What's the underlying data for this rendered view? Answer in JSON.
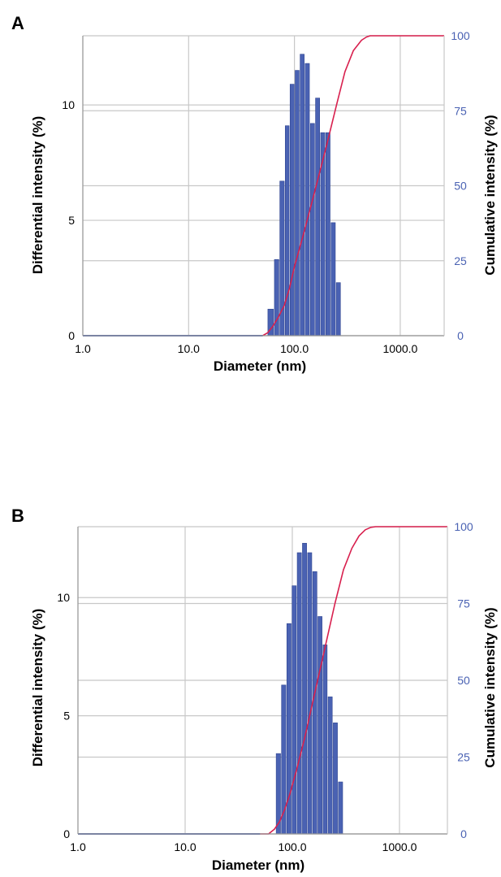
{
  "colors": {
    "bar_fill": "#4a62b3",
    "bar_edge": "#2f4590",
    "curve": "#d8204e",
    "grid": "#c8c8c8",
    "right_axis_text": "#4a62b3",
    "text": "#000000"
  },
  "chart_data": [
    {
      "panel_label": "A",
      "type": "bar",
      "xscale": "log",
      "xlabel": "Diameter (nm)",
      "ylabel": "Differential intensity (%)",
      "y2label": "Cumulative intensity (%)",
      "xlim": [
        1,
        2600
      ],
      "ylim": [
        0,
        13
      ],
      "y2lim": [
        0,
        100
      ],
      "xticks": [
        "1.0",
        "10.0",
        "100.0",
        "1000.0"
      ],
      "yticks": [
        "0",
        "5",
        "10"
      ],
      "y2ticks": [
        "0",
        "25",
        "50",
        "75",
        "100"
      ],
      "grid": true,
      "bars": {
        "x": [
          60,
          68,
          76,
          85,
          95,
          106,
          118,
          132,
          148,
          165,
          185,
          207,
          232,
          260,
          291,
          326,
          365,
          409,
          458
        ],
        "values": [
          1.15,
          3.3,
          6.7,
          9.1,
          10.9,
          11.5,
          12.2,
          11.8,
          9.2,
          10.3,
          8.8,
          8.8,
          4.9,
          2.3,
          0,
          0,
          0,
          0,
          0
        ],
        "edges": [
          55.5,
          64.0,
          72.0,
          81.0,
          90.0,
          100.5,
          112.0,
          125.0,
          140.0,
          156.5,
          175.0,
          196.0,
          219.5,
          246.0,
          275.0,
          308.0,
          345.0,
          387.0,
          433.5,
          485.0
        ]
      },
      "cumulative": {
        "x": [
          1,
          10,
          50,
          56,
          62,
          70,
          80,
          90,
          100,
          120,
          150,
          200,
          250,
          300,
          360,
          430,
          480,
          520,
          2600
        ],
        "y": [
          0,
          0,
          0,
          1,
          3,
          6,
          10,
          16,
          23,
          33,
          46,
          63,
          77,
          88,
          95,
          98.5,
          99.6,
          100,
          100
        ]
      }
    },
    {
      "panel_label": "B",
      "type": "bar",
      "xscale": "log",
      "xlabel": "Diameter (nm)",
      "ylabel": "Differential intensity (%)",
      "y2label": "Cumulative intensity (%)",
      "xlim": [
        1,
        2800
      ],
      "ylim": [
        0,
        13
      ],
      "y2lim": [
        0,
        100
      ],
      "xticks": [
        "1.0",
        "10.0",
        "100.0",
        "1000.0"
      ],
      "yticks": [
        "0",
        "5",
        "10"
      ],
      "y2ticks": [
        "0",
        "25",
        "50",
        "75",
        "100"
      ],
      "grid": true,
      "bars": {
        "x": [
          74,
          83,
          93,
          104,
          116,
          130,
          145,
          162,
          181,
          202,
          225,
          252,
          282,
          315,
          352,
          393,
          440,
          490,
          550
        ],
        "values": [
          3.4,
          6.3,
          8.9,
          10.5,
          11.9,
          12.3,
          11.9,
          11.1,
          9.2,
          8.0,
          5.8,
          4.7,
          2.2,
          0,
          0,
          0,
          0,
          0,
          0
        ],
        "edges": [
          70.0,
          78.5,
          88.0,
          98.5,
          110.0,
          123.0,
          137.5,
          153.5,
          171.5,
          191.5,
          213.5,
          238.5,
          266.5,
          298.0,
          333.0,
          372.0,
          416.0,
          465.0,
          520.0,
          580.0
        ]
      },
      "cumulative": {
        "x": [
          1,
          10,
          60,
          68,
          76,
          85,
          95,
          110,
          130,
          160,
          200,
          250,
          300,
          360,
          420,
          480,
          540,
          600,
          2800
        ],
        "y": [
          0,
          0,
          0,
          1.5,
          4,
          8,
          13,
          21,
          31,
          45,
          60,
          75,
          86,
          93,
          97,
          99,
          99.8,
          100,
          100
        ]
      }
    }
  ]
}
